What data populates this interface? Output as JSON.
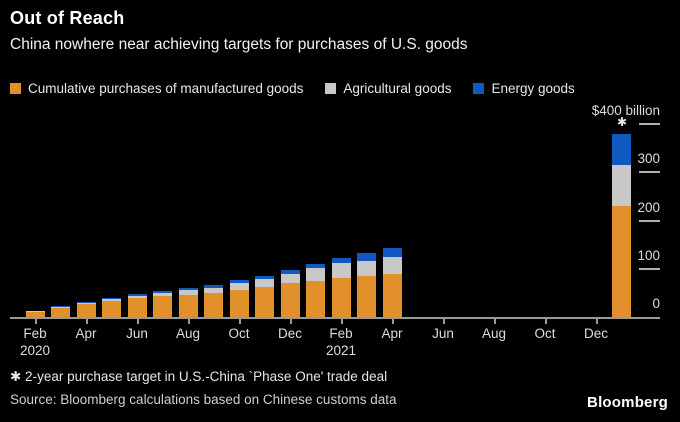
{
  "header": {
    "title": "Out of Reach",
    "subtitle": "China nowhere near achieving targets for purchases of U.S. goods"
  },
  "legend": [
    {
      "label": "Cumulative purchases of manufactured goods",
      "color": "#E2902B",
      "icon": "orange-square"
    },
    {
      "label": "Agricultural goods",
      "color": "#C8C8C8",
      "icon": "gray-square"
    },
    {
      "label": "Energy goods",
      "color": "#1159C1",
      "icon": "blue-square"
    }
  ],
  "chart_data": {
    "type": "bar",
    "stacked": true,
    "title": "Out of Reach",
    "unit": "USD billions",
    "grid": false,
    "legend_position": "top",
    "series_names": [
      "Cumulative purchases of manufactured goods",
      "Agricultural goods",
      "Energy goods"
    ],
    "colors": {
      "manufactured": "#E2902B",
      "agricultural": "#C8C8C8",
      "energy": "#1159C1"
    },
    "y_axis": {
      "max": 400,
      "min": 0,
      "side": "right",
      "tick_labels": [
        {
          "value": 400,
          "label": "$400 billion"
        },
        {
          "value": 300,
          "label": "300"
        },
        {
          "value": 200,
          "label": "200"
        },
        {
          "value": 100,
          "label": "100"
        },
        {
          "value": 0,
          "label": "0"
        }
      ]
    },
    "x_ticks": [
      {
        "label": "Feb",
        "year": "2020",
        "month_index": 0
      },
      {
        "label": "Apr",
        "year": "",
        "month_index": 2
      },
      {
        "label": "Jun",
        "year": "",
        "month_index": 4
      },
      {
        "label": "Aug",
        "year": "",
        "month_index": 6
      },
      {
        "label": "Oct",
        "year": "",
        "month_index": 8
      },
      {
        "label": "Dec",
        "year": "",
        "month_index": 10
      },
      {
        "label": "Feb",
        "year": "2021",
        "month_index": 12
      },
      {
        "label": "Apr",
        "year": "",
        "month_index": 14
      },
      {
        "label": "Jun",
        "year": "",
        "month_index": 16
      },
      {
        "label": "Aug",
        "year": "",
        "month_index": 18
      },
      {
        "label": "Oct",
        "year": "",
        "month_index": 20
      },
      {
        "label": "Dec",
        "year": "",
        "month_index": 22
      }
    ],
    "bars": [
      {
        "month": "Feb 2020",
        "month_index": 0,
        "manufactured": 11,
        "agricultural": 1.5,
        "energy": 0.5
      },
      {
        "month": "Mar 2020",
        "month_index": 1,
        "manufactured": 19,
        "agricultural": 2.5,
        "energy": 0.5
      },
      {
        "month": "Apr 2020",
        "month_index": 2,
        "manufactured": 26,
        "agricultural": 4,
        "energy": 1
      },
      {
        "month": "May 2020",
        "month_index": 3,
        "manufactured": 32.5,
        "agricultural": 4.5,
        "energy": 2
      },
      {
        "month": "Jun 2020",
        "month_index": 4,
        "manufactured": 38.5,
        "agricultural": 6,
        "energy": 2.5
      },
      {
        "month": "Jul 2020",
        "month_index": 5,
        "manufactured": 43,
        "agricultural": 7.5,
        "energy": 3.5
      },
      {
        "month": "Aug 2020",
        "month_index": 6,
        "manufactured": 46.5,
        "agricultural": 10,
        "energy": 4.5
      },
      {
        "month": "Sep 2020",
        "month_index": 7,
        "manufactured": 50,
        "agricultural": 11,
        "energy": 5
      },
      {
        "month": "Oct 2020",
        "month_index": 8,
        "manufactured": 55,
        "agricultural": 14.5,
        "energy": 6.5
      },
      {
        "month": "Nov 2020",
        "month_index": 9,
        "manufactured": 61.5,
        "agricultural": 16.5,
        "energy": 7
      },
      {
        "month": "Dec 2020",
        "month_index": 10,
        "manufactured": 71,
        "agricultural": 18,
        "energy": 8
      },
      {
        "month": "Jan 2021",
        "month_index": 11,
        "manufactured": 75,
        "agricultural": 26,
        "energy": 9
      },
      {
        "month": "Feb 2021",
        "month_index": 12,
        "manufactured": 81,
        "agricultural": 30,
        "energy": 11
      },
      {
        "month": "Mar 2021",
        "month_index": 13,
        "manufactured": 86,
        "agricultural": 31,
        "energy": 15
      },
      {
        "month": "Apr 2021",
        "month_index": 14,
        "manufactured": 90,
        "agricultural": 35,
        "energy": 19
      }
    ],
    "target_bar": {
      "label": "2-year Phase One target",
      "marker": "✱",
      "month_index": 23,
      "manufactured": 230,
      "agricultural": 85,
      "energy": 65,
      "total": 380
    }
  },
  "footnote": "✱ 2-year purchase target in U.S.-China `Phase One' trade deal",
  "source": "Source: Bloomberg calculations based on Chinese customs data",
  "logo": "Bloomberg"
}
